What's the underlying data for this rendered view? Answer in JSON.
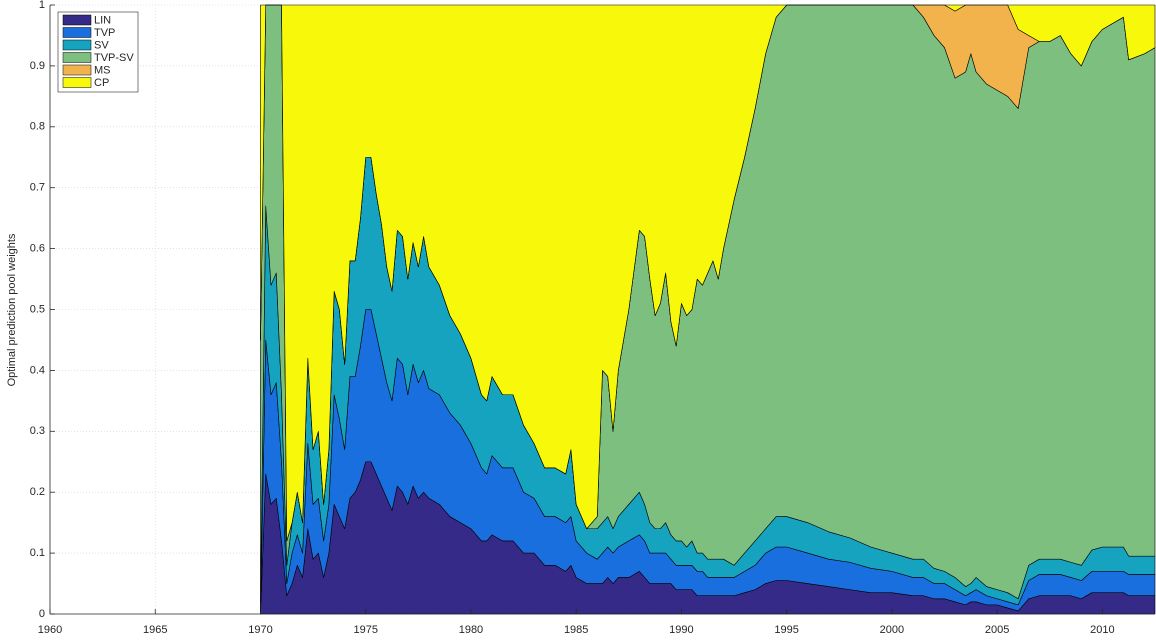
{
  "chart_data": {
    "type": "stacked-area",
    "y_label": "Optimal prediction pool weights",
    "x": [
      1970,
      1970.25,
      1970.5,
      1970.75,
      1971,
      1971.25,
      1971.5,
      1971.75,
      1972,
      1972.25,
      1972.5,
      1972.75,
      1973,
      1973.25,
      1973.5,
      1973.75,
      1974,
      1974.25,
      1974.5,
      1974.75,
      1975,
      1975.25,
      1975.5,
      1975.75,
      1976,
      1976.25,
      1976.5,
      1976.75,
      1977,
      1977.25,
      1977.5,
      1977.75,
      1978,
      1978.5,
      1979,
      1979.5,
      1980,
      1980.5,
      1980.75,
      1981,
      1981.5,
      1982,
      1982.5,
      1983,
      1983.5,
      1984,
      1984.5,
      1984.75,
      1985,
      1985.5,
      1986,
      1986.25,
      1986.5,
      1986.75,
      1987,
      1987.5,
      1988,
      1988.25,
      1988.5,
      1988.75,
      1989,
      1989.25,
      1989.5,
      1989.75,
      1990,
      1990.25,
      1990.5,
      1990.75,
      1991,
      1991.25,
      1991.5,
      1991.75,
      1992,
      1992.5,
      1993,
      1993.5,
      1994,
      1994.5,
      1995,
      1996,
      1997,
      1998,
      1999,
      2000,
      2001,
      2001.5,
      2002,
      2002.5,
      2003,
      2003.5,
      2003.75,
      2004,
      2004.5,
      2005,
      2005.5,
      2006,
      2006.5,
      2007,
      2007.5,
      2008,
      2008.5,
      2009,
      2009.5,
      2010,
      2010.5,
      2011,
      2011.25,
      2012,
      2012.5
    ],
    "series": [
      {
        "name": "LIN",
        "color": "#352a87",
        "values": [
          0,
          0.23,
          0.18,
          0.19,
          0.12,
          0.03,
          0.05,
          0.08,
          0.06,
          0.14,
          0.09,
          0.1,
          0.06,
          0.1,
          0.18,
          0.16,
          0.14,
          0.19,
          0.2,
          0.22,
          0.25,
          0.25,
          0.23,
          0.21,
          0.19,
          0.17,
          0.21,
          0.2,
          0.18,
          0.21,
          0.19,
          0.2,
          0.19,
          0.18,
          0.16,
          0.15,
          0.14,
          0.12,
          0.12,
          0.13,
          0.12,
          0.12,
          0.1,
          0.1,
          0.08,
          0.08,
          0.07,
          0.08,
          0.06,
          0.05,
          0.05,
          0.05,
          0.06,
          0.05,
          0.06,
          0.06,
          0.07,
          0.06,
          0.05,
          0.05,
          0.05,
          0.05,
          0.05,
          0.04,
          0.04,
          0.04,
          0.04,
          0.03,
          0.03,
          0.03,
          0.03,
          0.03,
          0.03,
          0.03,
          0.035,
          0.04,
          0.05,
          0.055,
          0.055,
          0.05,
          0.045,
          0.04,
          0.035,
          0.035,
          0.03,
          0.03,
          0.025,
          0.025,
          0.02,
          0.015,
          0.02,
          0.02,
          0.015,
          0.015,
          0.01,
          0.005,
          0.025,
          0.03,
          0.03,
          0.03,
          0.03,
          0.025,
          0.035,
          0.035,
          0.035,
          0.035,
          0.03,
          0.03,
          0.03
        ]
      },
      {
        "name": "TVP",
        "color": "#1a6fdf",
        "values": [
          0,
          0.22,
          0.18,
          0.19,
          0.13,
          0.02,
          0.05,
          0.05,
          0.04,
          0.14,
          0.09,
          0.09,
          0.06,
          0.08,
          0.18,
          0.16,
          0.13,
          0.2,
          0.19,
          0.22,
          0.25,
          0.25,
          0.23,
          0.21,
          0.19,
          0.18,
          0.21,
          0.21,
          0.18,
          0.2,
          0.19,
          0.2,
          0.18,
          0.18,
          0.17,
          0.16,
          0.14,
          0.12,
          0.11,
          0.13,
          0.12,
          0.12,
          0.1,
          0.09,
          0.08,
          0.08,
          0.08,
          0.08,
          0.06,
          0.05,
          0.04,
          0.05,
          0.05,
          0.05,
          0.05,
          0.06,
          0.06,
          0.06,
          0.05,
          0.05,
          0.05,
          0.05,
          0.04,
          0.04,
          0.04,
          0.04,
          0.04,
          0.04,
          0.04,
          0.03,
          0.03,
          0.03,
          0.03,
          0.03,
          0.035,
          0.04,
          0.05,
          0.055,
          0.055,
          0.05,
          0.045,
          0.045,
          0.04,
          0.035,
          0.03,
          0.03,
          0.025,
          0.025,
          0.02,
          0.015,
          0.015,
          0.02,
          0.015,
          0.01,
          0.01,
          0.01,
          0.03,
          0.035,
          0.035,
          0.035,
          0.03,
          0.03,
          0.035,
          0.035,
          0.035,
          0.035,
          0.035,
          0.035,
          0.035
        ]
      },
      {
        "name": "SV",
        "color": "#16a3bf",
        "values": [
          0.02,
          0.22,
          0.18,
          0.18,
          0.11,
          0.03,
          0.05,
          0.07,
          0.05,
          0.14,
          0.09,
          0.11,
          0.06,
          0.09,
          0.17,
          0.18,
          0.14,
          0.19,
          0.19,
          0.21,
          0.25,
          0.25,
          0.23,
          0.22,
          0.19,
          0.18,
          0.21,
          0.21,
          0.19,
          0.2,
          0.19,
          0.22,
          0.2,
          0.18,
          0.16,
          0.15,
          0.14,
          0.12,
          0.12,
          0.13,
          0.12,
          0.12,
          0.11,
          0.09,
          0.08,
          0.08,
          0.08,
          0.11,
          0.06,
          0.04,
          0.05,
          0.05,
          0.05,
          0.04,
          0.05,
          0.06,
          0.07,
          0.06,
          0.05,
          0.04,
          0.04,
          0.05,
          0.04,
          0.04,
          0.04,
          0.03,
          0.04,
          0.03,
          0.03,
          0.03,
          0.03,
          0.03,
          0.03,
          0.02,
          0.03,
          0.04,
          0.04,
          0.05,
          0.05,
          0.05,
          0.045,
          0.04,
          0.035,
          0.03,
          0.03,
          0.03,
          0.025,
          0.02,
          0.02,
          0.015,
          0.015,
          0.02,
          0.015,
          0.015,
          0.015,
          0.01,
          0.025,
          0.025,
          0.025,
          0.025,
          0.025,
          0.025,
          0.035,
          0.04,
          0.04,
          0.04,
          0.03,
          0.03,
          0.03
        ]
      },
      {
        "name": "TVP-SV",
        "color": "#7cbf7f",
        "values": [
          0.43,
          0.33,
          0.46,
          0.44,
          0.64,
          0.04,
          0,
          0,
          0,
          0,
          0,
          0,
          0,
          0,
          0,
          0,
          0,
          0,
          0,
          0,
          0,
          0,
          0,
          0,
          0,
          0,
          0,
          0,
          0,
          0,
          0,
          0,
          0,
          0,
          0,
          0,
          0,
          0,
          0,
          0,
          0,
          0,
          0,
          0,
          0,
          0,
          0,
          0,
          0,
          0,
          0.02,
          0.25,
          0.23,
          0.16,
          0.24,
          0.32,
          0.43,
          0.44,
          0.4,
          0.35,
          0.37,
          0.41,
          0.35,
          0.32,
          0.39,
          0.38,
          0.38,
          0.45,
          0.44,
          0.47,
          0.49,
          0.46,
          0.51,
          0.6,
          0.65,
          0.71,
          0.78,
          0.82,
          0.84,
          0.85,
          0.865,
          0.875,
          0.89,
          0.9,
          0.91,
          0.89,
          0.875,
          0.86,
          0.82,
          0.845,
          0.87,
          0.83,
          0.825,
          0.82,
          0.815,
          0.805,
          0.85,
          0.85,
          0.85,
          0.86,
          0.835,
          0.82,
          0.835,
          0.85,
          0.86,
          0.87,
          0.815,
          0.825,
          0.835
        ]
      },
      {
        "name": "MS",
        "color": "#f2b34c",
        "values": [
          0,
          0,
          0,
          0,
          0,
          0,
          0,
          0,
          0,
          0,
          0,
          0,
          0,
          0,
          0,
          0,
          0,
          0,
          0,
          0,
          0,
          0,
          0,
          0,
          0,
          0,
          0,
          0,
          0,
          0,
          0,
          0,
          0,
          0,
          0,
          0,
          0,
          0,
          0,
          0,
          0,
          0,
          0,
          0,
          0,
          0,
          0,
          0,
          0,
          0,
          0,
          0,
          0,
          0,
          0,
          0,
          0,
          0,
          0,
          0,
          0,
          0,
          0,
          0,
          0,
          0,
          0,
          0,
          0,
          0,
          0,
          0,
          0,
          0,
          0,
          0,
          0,
          0,
          0,
          0,
          0,
          0,
          0,
          0,
          0,
          0.02,
          0.05,
          0.07,
          0.11,
          0.11,
          0.08,
          0.11,
          0.13,
          0.14,
          0.15,
          0.13,
          0.02,
          0,
          0,
          0,
          0,
          0,
          0,
          0,
          0,
          0,
          0,
          0,
          0
        ]
      },
      {
        "name": "CP",
        "color": "#f8f80a",
        "values": [
          0.55,
          0,
          0,
          0,
          0,
          0.88,
          0.85,
          0.8,
          0.85,
          0.58,
          0.73,
          0.7,
          0.82,
          0.73,
          0.47,
          0.5,
          0.59,
          0.42,
          0.42,
          0.35,
          0.25,
          0.25,
          0.31,
          0.36,
          0.43,
          0.47,
          0.37,
          0.38,
          0.45,
          0.39,
          0.43,
          0.38,
          0.43,
          0.46,
          0.51,
          0.54,
          0.58,
          0.64,
          0.65,
          0.61,
          0.64,
          0.64,
          0.69,
          0.72,
          0.76,
          0.76,
          0.77,
          0.73,
          0.82,
          0.86,
          0.84,
          0.6,
          0.61,
          0.7,
          0.6,
          0.5,
          0.37,
          0.38,
          0.45,
          0.51,
          0.49,
          0.44,
          0.52,
          0.56,
          0.49,
          0.51,
          0.5,
          0.45,
          0.46,
          0.44,
          0.42,
          0.45,
          0.4,
          0.32,
          0.25,
          0.17,
          0.08,
          0.02,
          0,
          0,
          0,
          0,
          0,
          0,
          0,
          0,
          0,
          0,
          0.01,
          0,
          0,
          0,
          0,
          0,
          0,
          0.04,
          0.05,
          0.06,
          0.06,
          0.05,
          0.08,
          0.1,
          0.06,
          0.04,
          0.03,
          0.02,
          0.09,
          0.08,
          0.07
        ]
      }
    ],
    "xlim": [
      1960,
      2012.5
    ],
    "xticks": [
      1960,
      1965,
      1970,
      1975,
      1980,
      1985,
      1990,
      1995,
      2000,
      2005,
      2010
    ],
    "ylim": [
      0,
      1
    ],
    "yticks": [
      0,
      0.1,
      0.2,
      0.3,
      0.4,
      0.5,
      0.6,
      0.7,
      0.8,
      0.9,
      1
    ],
    "grid": true,
    "legend": "upper-left"
  }
}
